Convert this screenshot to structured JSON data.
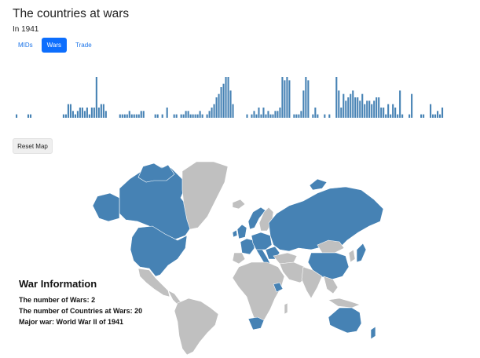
{
  "header": {
    "title": "The countries at wars",
    "subtitle": "In 1941"
  },
  "tabs": [
    {
      "label": "MIDs",
      "active": false
    },
    {
      "label": "Wars",
      "active": true
    },
    {
      "label": "Trade",
      "active": false
    }
  ],
  "timeline": {
    "bar_color": "#4682b4",
    "bar_values": [
      1,
      0,
      0,
      0,
      0,
      1,
      1,
      0,
      0,
      0,
      0,
      0,
      0,
      0,
      0,
      0,
      0,
      0,
      0,
      0,
      1,
      1,
      4,
      4,
      2,
      1,
      2,
      3,
      3,
      2,
      3,
      1,
      3,
      3,
      12,
      3,
      4,
      4,
      2,
      0,
      0,
      0,
      0,
      0,
      1,
      1,
      1,
      1,
      2,
      1,
      1,
      1,
      1,
      2,
      2,
      0,
      0,
      0,
      0,
      1,
      1,
      0,
      1,
      0,
      3,
      0,
      0,
      1,
      1,
      0,
      1,
      1,
      2,
      2,
      1,
      1,
      1,
      1,
      2,
      1,
      0,
      1,
      2,
      3,
      4,
      6,
      7,
      9,
      10,
      12,
      12,
      8,
      4,
      0,
      0,
      0,
      0,
      0,
      1,
      0,
      1,
      2,
      1,
      3,
      1,
      3,
      1,
      2,
      1,
      1,
      2,
      2,
      3,
      12,
      11,
      12,
      11,
      0,
      1,
      1,
      1,
      2,
      8,
      12,
      11,
      0,
      1,
      3,
      1,
      0,
      0,
      1,
      0,
      1,
      0,
      0,
      12,
      8,
      3,
      7,
      5,
      6,
      7,
      8,
      6,
      6,
      5,
      7,
      4,
      5,
      5,
      4,
      5,
      6,
      6,
      3,
      3,
      1,
      4,
      1,
      4,
      3,
      1,
      8,
      1,
      0,
      0,
      1,
      7,
      0,
      0,
      0,
      1,
      1,
      0,
      0,
      4,
      1,
      1,
      2,
      1,
      3
    ]
  },
  "reset_button": {
    "label": "Reset Map"
  },
  "map": {
    "war_color": "#4682b4",
    "neutral_color": "#c0c0c0",
    "border_color": "#ffffff"
  },
  "info": {
    "heading": "War Information",
    "wars_line": "The number of Wars: 2",
    "countries_line": "The number of Countries at Wars: 20",
    "major_line": "Major war: World War II of 1941"
  }
}
